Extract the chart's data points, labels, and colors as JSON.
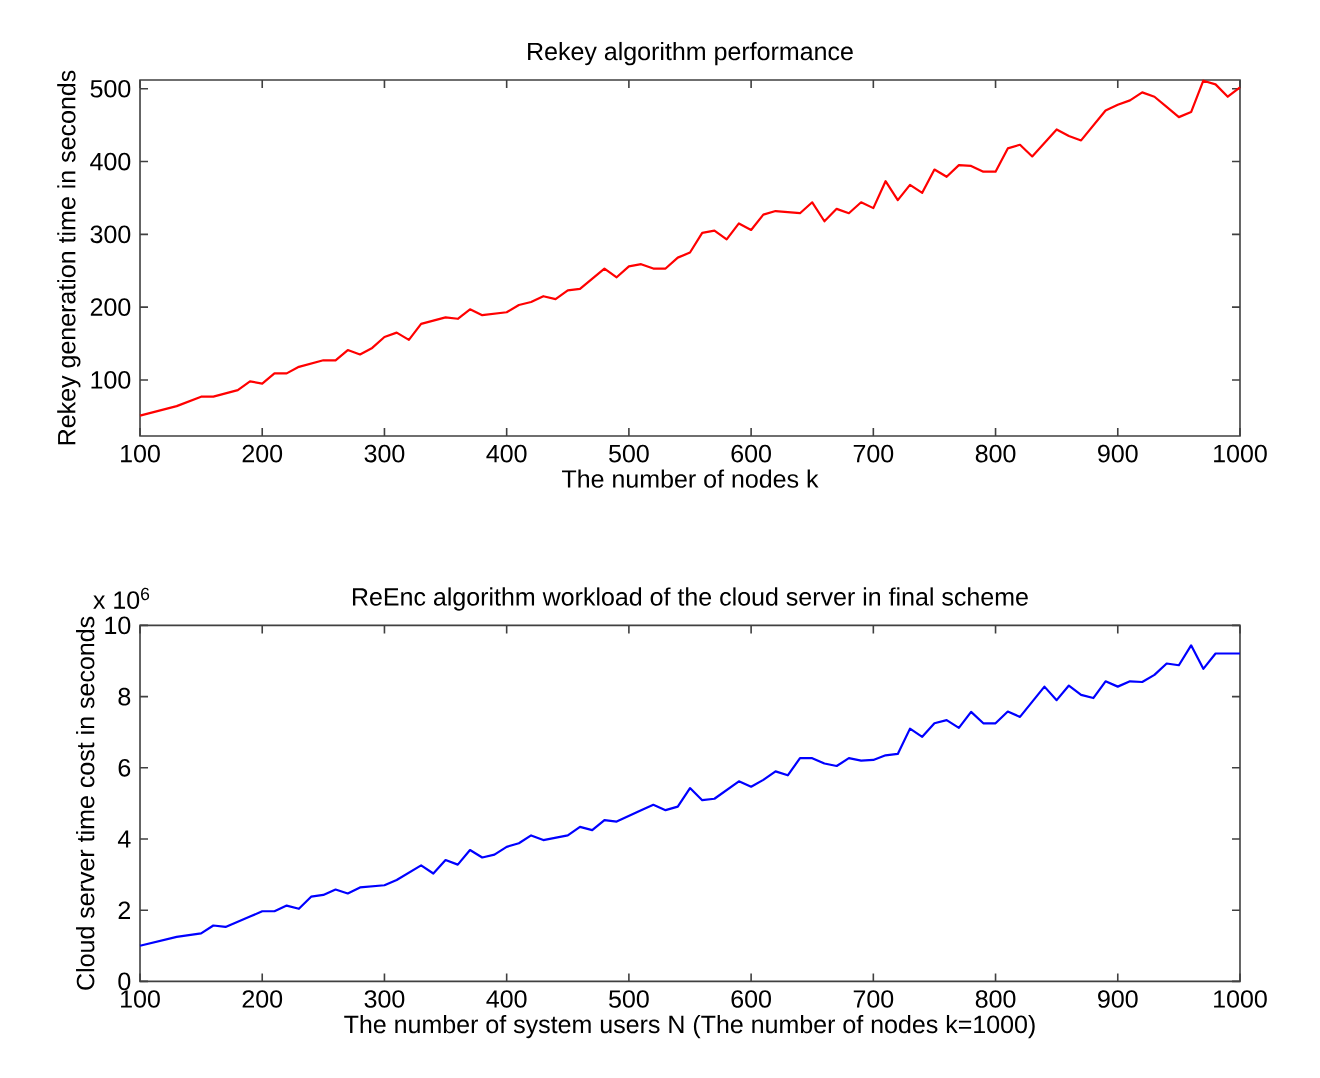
{
  "chart_data": [
    {
      "type": "line",
      "title": "Rekey algorithm performance",
      "xlabel": "The number of nodes k",
      "ylabel": "Rekey generation time in seconds",
      "x": [
        100,
        130,
        150,
        160,
        180,
        190,
        200,
        210,
        220,
        230,
        250,
        260,
        270,
        280,
        290,
        300,
        310,
        320,
        330,
        350,
        360,
        370,
        380,
        400,
        410,
        420,
        430,
        440,
        450,
        460,
        480,
        490,
        500,
        510,
        520,
        530,
        540,
        550,
        560,
        570,
        580,
        590,
        600,
        610,
        620,
        640,
        650,
        660,
        670,
        680,
        690,
        700,
        710,
        720,
        730,
        740,
        750,
        760,
        770,
        780,
        790,
        800,
        810,
        820,
        830,
        850,
        860,
        870,
        890,
        900,
        910,
        920,
        930,
        940,
        950,
        960,
        970,
        980,
        990,
        1000
      ],
      "series": [
        {
          "color": "#ff0000",
          "values": [
            51,
            64,
            77,
            77,
            86,
            98,
            95,
            109,
            109,
            118,
            127,
            127,
            141,
            135,
            144,
            159,
            165,
            155,
            177,
            186,
            184,
            197,
            189,
            193,
            203,
            207,
            215,
            211,
            223,
            225,
            253,
            241,
            256,
            259,
            253,
            253,
            268,
            275,
            302,
            305,
            293,
            315,
            306,
            327,
            332,
            329,
            344,
            318,
            335,
            329,
            344,
            336,
            373,
            347,
            368,
            357,
            389,
            379,
            395,
            394,
            386,
            386,
            418,
            423,
            407,
            444,
            435,
            429,
            470,
            478,
            484,
            495,
            489,
            475,
            461,
            468,
            511,
            506,
            489,
            502
          ]
        }
      ],
      "xlim": [
        100,
        1000
      ],
      "ylim": [
        23,
        512
      ],
      "xticks": [
        100,
        200,
        300,
        400,
        500,
        600,
        700,
        800,
        900,
        1000
      ],
      "yticks": [
        100,
        200,
        300,
        400,
        500
      ]
    },
    {
      "type": "line",
      "title": "ReEnc algorithm workload of the cloud server in final scheme",
      "xlabel": "The number of system users N (The number of nodes k=1000)",
      "ylabel": "Cloud server time cost in seconds",
      "annotations": [
        "x 10$^{6}$"
      ],
      "x": [
        100,
        130,
        150,
        160,
        170,
        190,
        200,
        210,
        220,
        230,
        240,
        250,
        260,
        270,
        280,
        300,
        310,
        330,
        340,
        350,
        360,
        370,
        380,
        390,
        400,
        410,
        420,
        430,
        450,
        460,
        470,
        480,
        490,
        510,
        520,
        530,
        540,
        550,
        560,
        570,
        590,
        600,
        610,
        620,
        630,
        640,
        650,
        660,
        670,
        680,
        690,
        700,
        710,
        720,
        730,
        740,
        750,
        760,
        770,
        780,
        790,
        800,
        810,
        820,
        840,
        850,
        860,
        870,
        880,
        890,
        900,
        910,
        920,
        930,
        940,
        950,
        960,
        970,
        980,
        1000
      ],
      "series": [
        {
          "color": "#0000ff",
          "values": [
            1.0,
            1.25,
            1.35,
            1.57,
            1.53,
            1.82,
            1.97,
            1.97,
            2.13,
            2.04,
            2.38,
            2.43,
            2.58,
            2.47,
            2.64,
            2.7,
            2.85,
            3.26,
            3.03,
            3.41,
            3.28,
            3.69,
            3.48,
            3.56,
            3.78,
            3.88,
            4.1,
            3.97,
            4.1,
            4.34,
            4.25,
            4.53,
            4.49,
            4.81,
            4.96,
            4.81,
            4.91,
            5.43,
            5.09,
            5.13,
            5.62,
            5.47,
            5.66,
            5.9,
            5.79,
            6.27,
            6.27,
            6.12,
            6.05,
            6.27,
            6.2,
            6.22,
            6.35,
            6.39,
            7.1,
            6.87,
            7.25,
            7.34,
            7.12,
            7.57,
            7.25,
            7.25,
            7.58,
            7.43,
            8.28,
            7.9,
            8.31,
            8.05,
            7.96,
            8.43,
            8.28,
            8.43,
            8.41,
            8.61,
            8.93,
            8.88,
            9.44,
            8.78,
            9.21,
            9.21
          ]
        }
      ],
      "xlim": [
        100,
        1000
      ],
      "ylim": [
        0,
        10
      ],
      "xticks": [
        100,
        200,
        300,
        400,
        500,
        600,
        700,
        800,
        900,
        1000
      ],
      "yticks": [
        0,
        2,
        4,
        6,
        8,
        10
      ]
    }
  ]
}
